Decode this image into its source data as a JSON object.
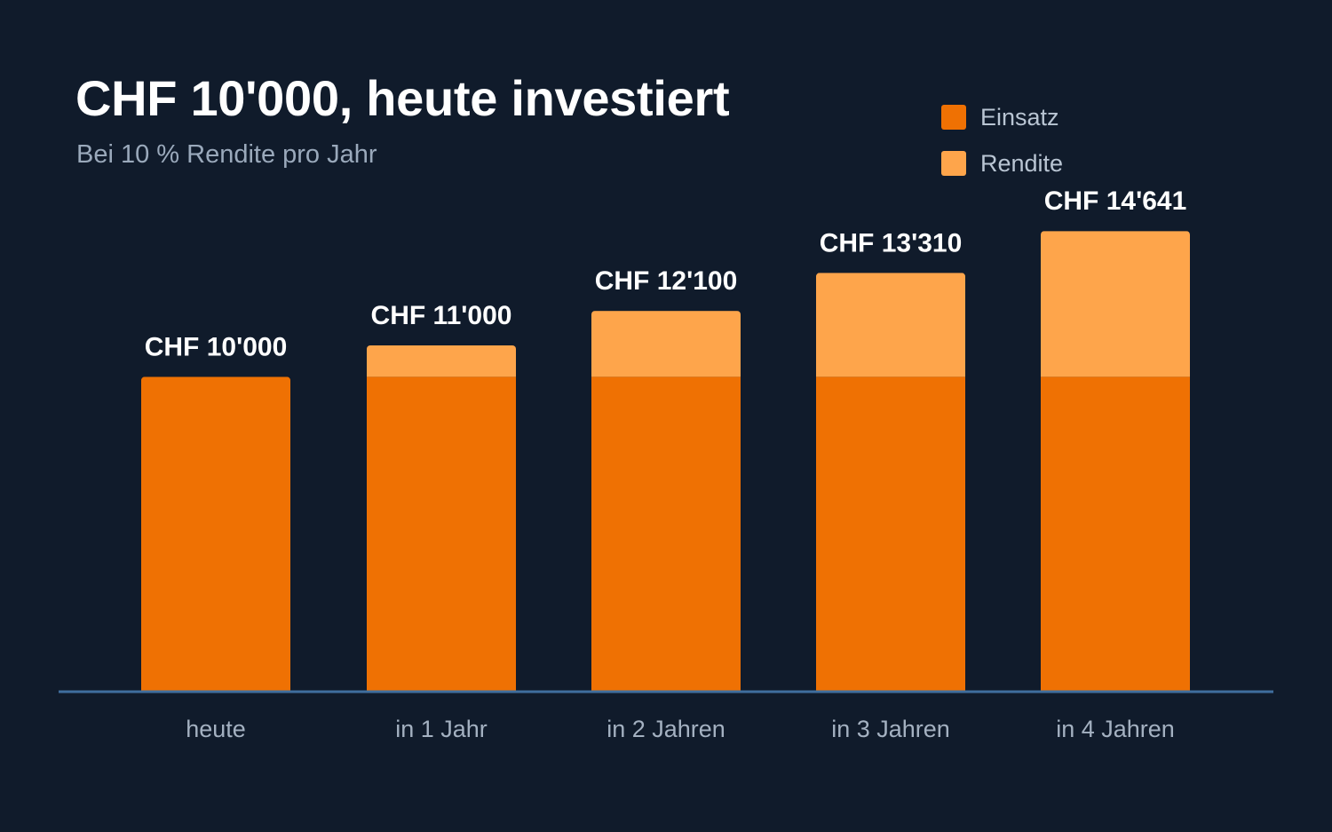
{
  "chart_data": {
    "type": "bar",
    "stacked": true,
    "title": "CHF 10'000, heute investiert",
    "subtitle": "Bei 10 % Rendite pro Jahr",
    "categories": [
      "heute",
      "in 1 Jahr",
      "in 2 Jahren",
      "in 3 Jahren",
      "in 4 Jahren"
    ],
    "series": [
      {
        "name": "Einsatz",
        "color": "#ef7103",
        "values": [
          10000,
          10000,
          10000,
          10000,
          10000
        ]
      },
      {
        "name": "Rendite",
        "color": "#fea54b",
        "values": [
          0,
          1000,
          2100,
          3310,
          4641
        ]
      }
    ],
    "data_labels": [
      "CHF 10'000",
      "CHF 11'000",
      "CHF 12'100",
      "CHF 13'310",
      "CHF 14'641"
    ],
    "ylim": [
      0,
      22000
    ],
    "grid": false,
    "legend_position": "top-right"
  }
}
